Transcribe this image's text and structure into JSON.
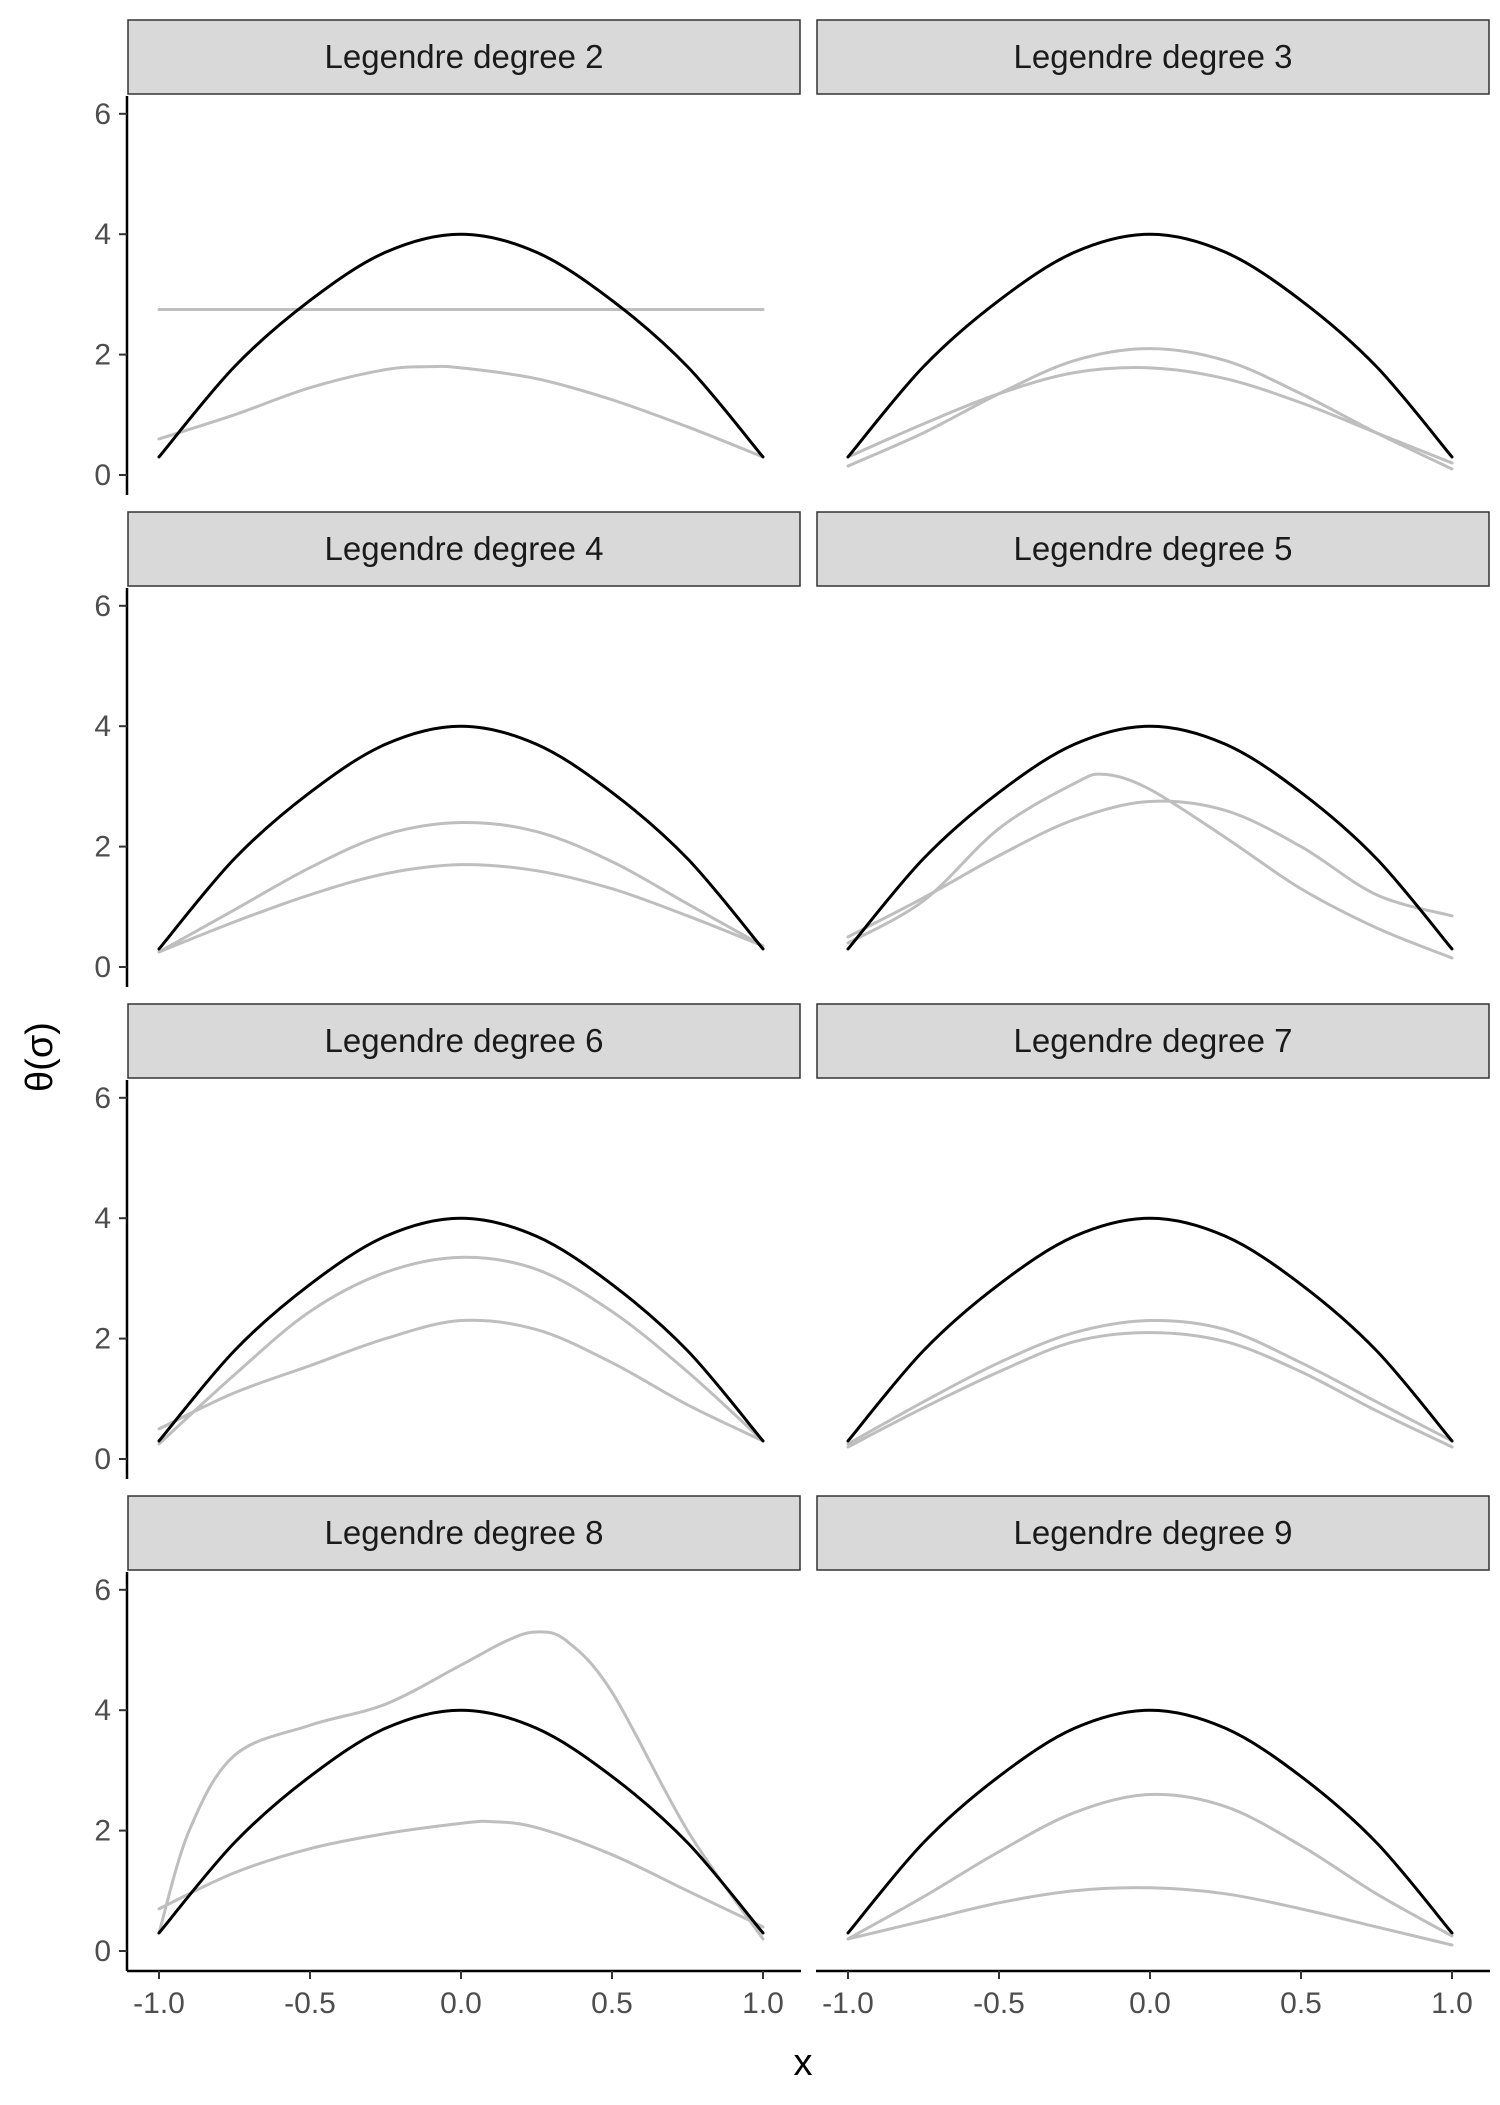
{
  "chart_data": {
    "type": "line",
    "ylabel": "θ(σ)",
    "xlabel": "x",
    "xlim": [
      -1.0,
      1.0
    ],
    "ylim": [
      0,
      6
    ],
    "x_ticks": [
      -1.0,
      -0.5,
      0.0,
      0.5,
      1.0
    ],
    "x_tick_labels": [
      "-1.0",
      "-0.5",
      "0.0",
      "0.5",
      "1.0"
    ],
    "y_ticks": [
      0,
      2,
      4,
      6
    ],
    "y_tick_labels": [
      "0",
      "2",
      "4",
      "6"
    ],
    "grid": false,
    "facet_layout": "4 rows x 2 columns",
    "colors": {
      "true_curve": "#000000",
      "fitted_curve": "#bebebe",
      "strip_fill": "#d9d9d9",
      "strip_border": "#333333"
    },
    "panels": [
      {
        "title": "Legendre degree 2",
        "series": [
          {
            "color": "#000000",
            "x": [
              -1.0,
              -0.75,
              -0.5,
              -0.25,
              0.0,
              0.25,
              0.5,
              0.75,
              1.0
            ],
            "y": [
              0.3,
              1.8,
              2.9,
              3.7,
              4.0,
              3.7,
              2.9,
              1.8,
              0.3
            ]
          },
          {
            "color": "#bebebe",
            "x": [
              -1.0,
              1.0
            ],
            "y": [
              2.75,
              2.75
            ]
          },
          {
            "color": "#bebebe",
            "x": [
              -1.0,
              -0.75,
              -0.5,
              -0.25,
              -0.1,
              0.0,
              0.25,
              0.5,
              0.75,
              1.0
            ],
            "y": [
              0.6,
              1.0,
              1.45,
              1.75,
              1.8,
              1.78,
              1.6,
              1.25,
              0.8,
              0.3
            ]
          }
        ]
      },
      {
        "title": "Legendre degree 3",
        "series": [
          {
            "color": "#000000",
            "x": [
              -1.0,
              -0.75,
              -0.5,
              -0.25,
              0.0,
              0.25,
              0.5,
              0.75,
              1.0
            ],
            "y": [
              0.3,
              1.8,
              2.9,
              3.7,
              4.0,
              3.7,
              2.9,
              1.8,
              0.3
            ]
          },
          {
            "color": "#bebebe",
            "x": [
              -1.0,
              -0.75,
              -0.5,
              -0.25,
              0.0,
              0.25,
              0.5,
              0.75,
              1.0
            ],
            "y": [
              0.15,
              0.7,
              1.35,
              1.9,
              2.1,
              1.9,
              1.35,
              0.7,
              0.1
            ]
          },
          {
            "color": "#bebebe",
            "x": [
              -1.0,
              -0.75,
              -0.5,
              -0.25,
              0.0,
              0.25,
              0.5,
              0.75,
              1.0
            ],
            "y": [
              0.3,
              0.85,
              1.35,
              1.7,
              1.78,
              1.6,
              1.2,
              0.7,
              0.2
            ]
          }
        ]
      },
      {
        "title": "Legendre degree 4",
        "series": [
          {
            "color": "#000000",
            "x": [
              -1.0,
              -0.75,
              -0.5,
              -0.25,
              0.0,
              0.25,
              0.5,
              0.75,
              1.0
            ],
            "y": [
              0.3,
              1.8,
              2.9,
              3.7,
              4.0,
              3.7,
              2.9,
              1.8,
              0.3
            ]
          },
          {
            "color": "#bebebe",
            "x": [
              -1.0,
              -0.75,
              -0.5,
              -0.25,
              0.0,
              0.25,
              0.5,
              0.75,
              1.0
            ],
            "y": [
              0.25,
              0.95,
              1.65,
              2.2,
              2.4,
              2.25,
              1.75,
              1.05,
              0.35
            ]
          },
          {
            "color": "#bebebe",
            "x": [
              -1.0,
              -0.75,
              -0.5,
              -0.25,
              0.0,
              0.25,
              0.5,
              0.75,
              1.0
            ],
            "y": [
              0.25,
              0.75,
              1.2,
              1.55,
              1.7,
              1.6,
              1.3,
              0.85,
              0.35
            ]
          }
        ]
      },
      {
        "title": "Legendre degree 5",
        "series": [
          {
            "color": "#000000",
            "x": [
              -1.0,
              -0.75,
              -0.5,
              -0.25,
              0.0,
              0.25,
              0.5,
              0.75,
              1.0
            ],
            "y": [
              0.3,
              1.8,
              2.9,
              3.7,
              4.0,
              3.7,
              2.9,
              1.8,
              0.3
            ]
          },
          {
            "color": "#bebebe",
            "x": [
              -1.0,
              -0.75,
              -0.5,
              -0.25,
              -0.15,
              0.0,
              0.25,
              0.5,
              0.75,
              1.0
            ],
            "y": [
              0.4,
              1.1,
              2.3,
              3.05,
              3.2,
              2.95,
              2.15,
              1.3,
              0.65,
              0.15
            ]
          },
          {
            "color": "#bebebe",
            "x": [
              -1.0,
              -0.75,
              -0.5,
              -0.25,
              0.0,
              0.25,
              0.5,
              0.75,
              1.0
            ],
            "y": [
              0.5,
              1.15,
              1.85,
              2.45,
              2.75,
              2.6,
              2.0,
              1.2,
              0.85
            ]
          }
        ]
      },
      {
        "title": "Legendre degree 6",
        "series": [
          {
            "color": "#000000",
            "x": [
              -1.0,
              -0.75,
              -0.5,
              -0.25,
              0.0,
              0.25,
              0.5,
              0.75,
              1.0
            ],
            "y": [
              0.3,
              1.8,
              2.9,
              3.7,
              4.0,
              3.7,
              2.9,
              1.8,
              0.3
            ]
          },
          {
            "color": "#bebebe",
            "x": [
              -1.0,
              -0.75,
              -0.5,
              -0.25,
              0.0,
              0.25,
              0.5,
              0.75,
              1.0
            ],
            "y": [
              0.25,
              1.4,
              2.45,
              3.1,
              3.35,
              3.15,
              2.45,
              1.45,
              0.3
            ]
          },
          {
            "color": "#bebebe",
            "x": [
              -1.0,
              -0.75,
              -0.5,
              -0.25,
              0.0,
              0.25,
              0.5,
              0.75,
              1.0
            ],
            "y": [
              0.5,
              1.1,
              1.55,
              2.0,
              2.3,
              2.15,
              1.6,
              0.9,
              0.3
            ]
          }
        ]
      },
      {
        "title": "Legendre degree 7",
        "series": [
          {
            "color": "#000000",
            "x": [
              -1.0,
              -0.75,
              -0.5,
              -0.25,
              0.0,
              0.25,
              0.5,
              0.75,
              1.0
            ],
            "y": [
              0.3,
              1.8,
              2.9,
              3.7,
              4.0,
              3.7,
              2.9,
              1.8,
              0.3
            ]
          },
          {
            "color": "#bebebe",
            "x": [
              -1.0,
              -0.75,
              -0.5,
              -0.25,
              0.0,
              0.25,
              0.5,
              0.75,
              1.0
            ],
            "y": [
              0.25,
              0.95,
              1.6,
              2.1,
              2.3,
              2.15,
              1.6,
              0.95,
              0.3
            ]
          },
          {
            "color": "#bebebe",
            "x": [
              -1.0,
              -0.75,
              -0.5,
              -0.25,
              0.0,
              0.25,
              0.5,
              0.75,
              1.0
            ],
            "y": [
              0.2,
              0.85,
              1.45,
              1.95,
              2.1,
              1.95,
              1.45,
              0.8,
              0.2
            ]
          }
        ]
      },
      {
        "title": "Legendre degree 8",
        "series": [
          {
            "color": "#000000",
            "x": [
              -1.0,
              -0.75,
              -0.5,
              -0.25,
              0.0,
              0.25,
              0.5,
              0.75,
              1.0
            ],
            "y": [
              0.3,
              1.8,
              2.9,
              3.7,
              4.0,
              3.7,
              2.9,
              1.8,
              0.3
            ]
          },
          {
            "color": "#bebebe",
            "x": [
              -1.0,
              -0.9,
              -0.75,
              -0.5,
              -0.25,
              0.0,
              0.15,
              0.25,
              0.35,
              0.5,
              0.75,
              1.0
            ],
            "y": [
              0.3,
              2.0,
              3.25,
              3.75,
              4.1,
              4.75,
              5.15,
              5.3,
              5.15,
              4.3,
              2.0,
              0.2
            ]
          },
          {
            "color": "#bebebe",
            "x": [
              -1.0,
              -0.75,
              -0.5,
              -0.25,
              0.0,
              0.1,
              0.25,
              0.5,
              0.75,
              1.0
            ],
            "y": [
              0.7,
              1.3,
              1.7,
              1.95,
              2.12,
              2.15,
              2.05,
              1.6,
              1.0,
              0.4
            ]
          }
        ]
      },
      {
        "title": "Legendre degree 9",
        "series": [
          {
            "color": "#000000",
            "x": [
              -1.0,
              -0.75,
              -0.5,
              -0.25,
              0.0,
              0.25,
              0.5,
              0.75,
              1.0
            ],
            "y": [
              0.3,
              1.8,
              2.9,
              3.7,
              4.0,
              3.7,
              2.9,
              1.8,
              0.3
            ]
          },
          {
            "color": "#bebebe",
            "x": [
              -1.0,
              -0.75,
              -0.5,
              -0.25,
              0.0,
              0.25,
              0.5,
              0.75,
              1.0
            ],
            "y": [
              0.2,
              0.9,
              1.65,
              2.3,
              2.6,
              2.4,
              1.75,
              0.95,
              0.25
            ]
          },
          {
            "color": "#bebebe",
            "x": [
              -1.0,
              -0.75,
              -0.5,
              -0.25,
              0.0,
              0.25,
              0.5,
              0.75,
              1.0
            ],
            "y": [
              0.2,
              0.5,
              0.8,
              1.0,
              1.05,
              0.95,
              0.7,
              0.4,
              0.1
            ]
          }
        ]
      }
    ]
  }
}
